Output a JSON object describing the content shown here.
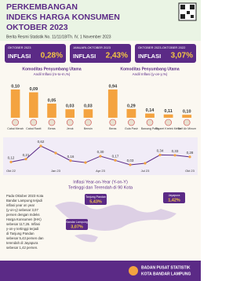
{
  "header": {
    "title_lines": [
      "PERKEMBANGAN",
      "INDEKS HARGA KONSUMEN",
      "OKTOBER 2023"
    ],
    "subtitle": "Berita Resmi Statistik No. 11/11/18/Th. IV, 1 November 2023"
  },
  "boxes": [
    {
      "period": "OKTOBER 2023",
      "label": "INFLASI",
      "value": "0,28%"
    },
    {
      "period": "JANUARI-OKTOBER 2023",
      "label": "INFLASI",
      "value": "2,43%"
    },
    {
      "period": "OKTOBER 2023-OKTOBER 2022",
      "label": "INFLASI",
      "value": "3,07%"
    }
  ],
  "chart_data": [
    {
      "type": "bar",
      "title": "Komoditas Penyumbang Utama",
      "subtitle": "Andil Inflasi (m-to-m,%)",
      "categories": [
        "Cabai Merah",
        "Cabai Rawit",
        "Beras",
        "Jeruk",
        "Bensin"
      ],
      "values": [
        0.1,
        0.09,
        0.05,
        0.03,
        0.03
      ],
      "value_labels": [
        "0,10",
        "0,09",
        "0,05",
        "0,03",
        "0,03"
      ],
      "color": "#f4a340"
    },
    {
      "type": "bar",
      "title": "Komoditas Penyumbang Utama",
      "subtitle": "Andil Inflasi (y-on-y,%)",
      "categories": [
        "Beras",
        "Gula Pasir",
        "Bawang Putih",
        "Sigaret Kretek Mesin",
        "Tarif Air Minum"
      ],
      "values": [
        0.94,
        0.29,
        0.14,
        0.11,
        0.1
      ],
      "value_labels": [
        "0,94",
        "0,29",
        "0,14",
        "0,11",
        "0,10"
      ],
      "color": "#f4a340"
    },
    {
      "type": "line",
      "categories": [
        "Okt 22",
        null,
        null,
        "Jan 23",
        null,
        null,
        "Apr 23",
        null,
        null,
        "Jul 23",
        null,
        null,
        "Okt 23"
      ],
      "values": [
        0.12,
        0.21,
        0.62,
        0.4,
        0.16,
        0.1,
        0.3,
        0.17,
        0.03,
        0.08,
        0.34,
        0.33,
        0.28
      ],
      "value_labels": [
        "0,12",
        "0,21",
        "0,62",
        null,
        "0,16",
        null,
        "0,30",
        "0,17",
        "0,03",
        null,
        "0,34",
        "0,33",
        "0,28"
      ],
      "color": "#5b2a86"
    }
  ],
  "map": {
    "title_lines": [
      "Inflasi Year-on-Year (Y-on-Y)",
      "Tertinggi dan Terendah di 90 Kota"
    ],
    "paragraph_lines": [
      "Pada Oktober 2023 Kota",
      "Bandar Lampung terjadi",
      "inflasi year on year",
      "(y-on-y) sebesar 3,07",
      "persen dengan Indeks",
      "Harga Konsumen (IHK)",
      "sebesar 117,26. Inflasi",
      "y-on-y tertinggi terjadi",
      "di Tanjung Pandan",
      "sebesar 5,43 persen dan",
      "terendah di Jayapura",
      "sebesar 1,42 persen."
    ],
    "cities": [
      {
        "name": "Bandar Lampung",
        "value": "3,07%"
      },
      {
        "name": "Tanjung Pandan",
        "value": "5,43%"
      },
      {
        "name": "Jayapura",
        "value": "1,42%"
      }
    ]
  },
  "footer": {
    "lines": [
      "BADAN PUSAT STATISTIK",
      "KOTA BANDAR LAMPUNG"
    ]
  }
}
